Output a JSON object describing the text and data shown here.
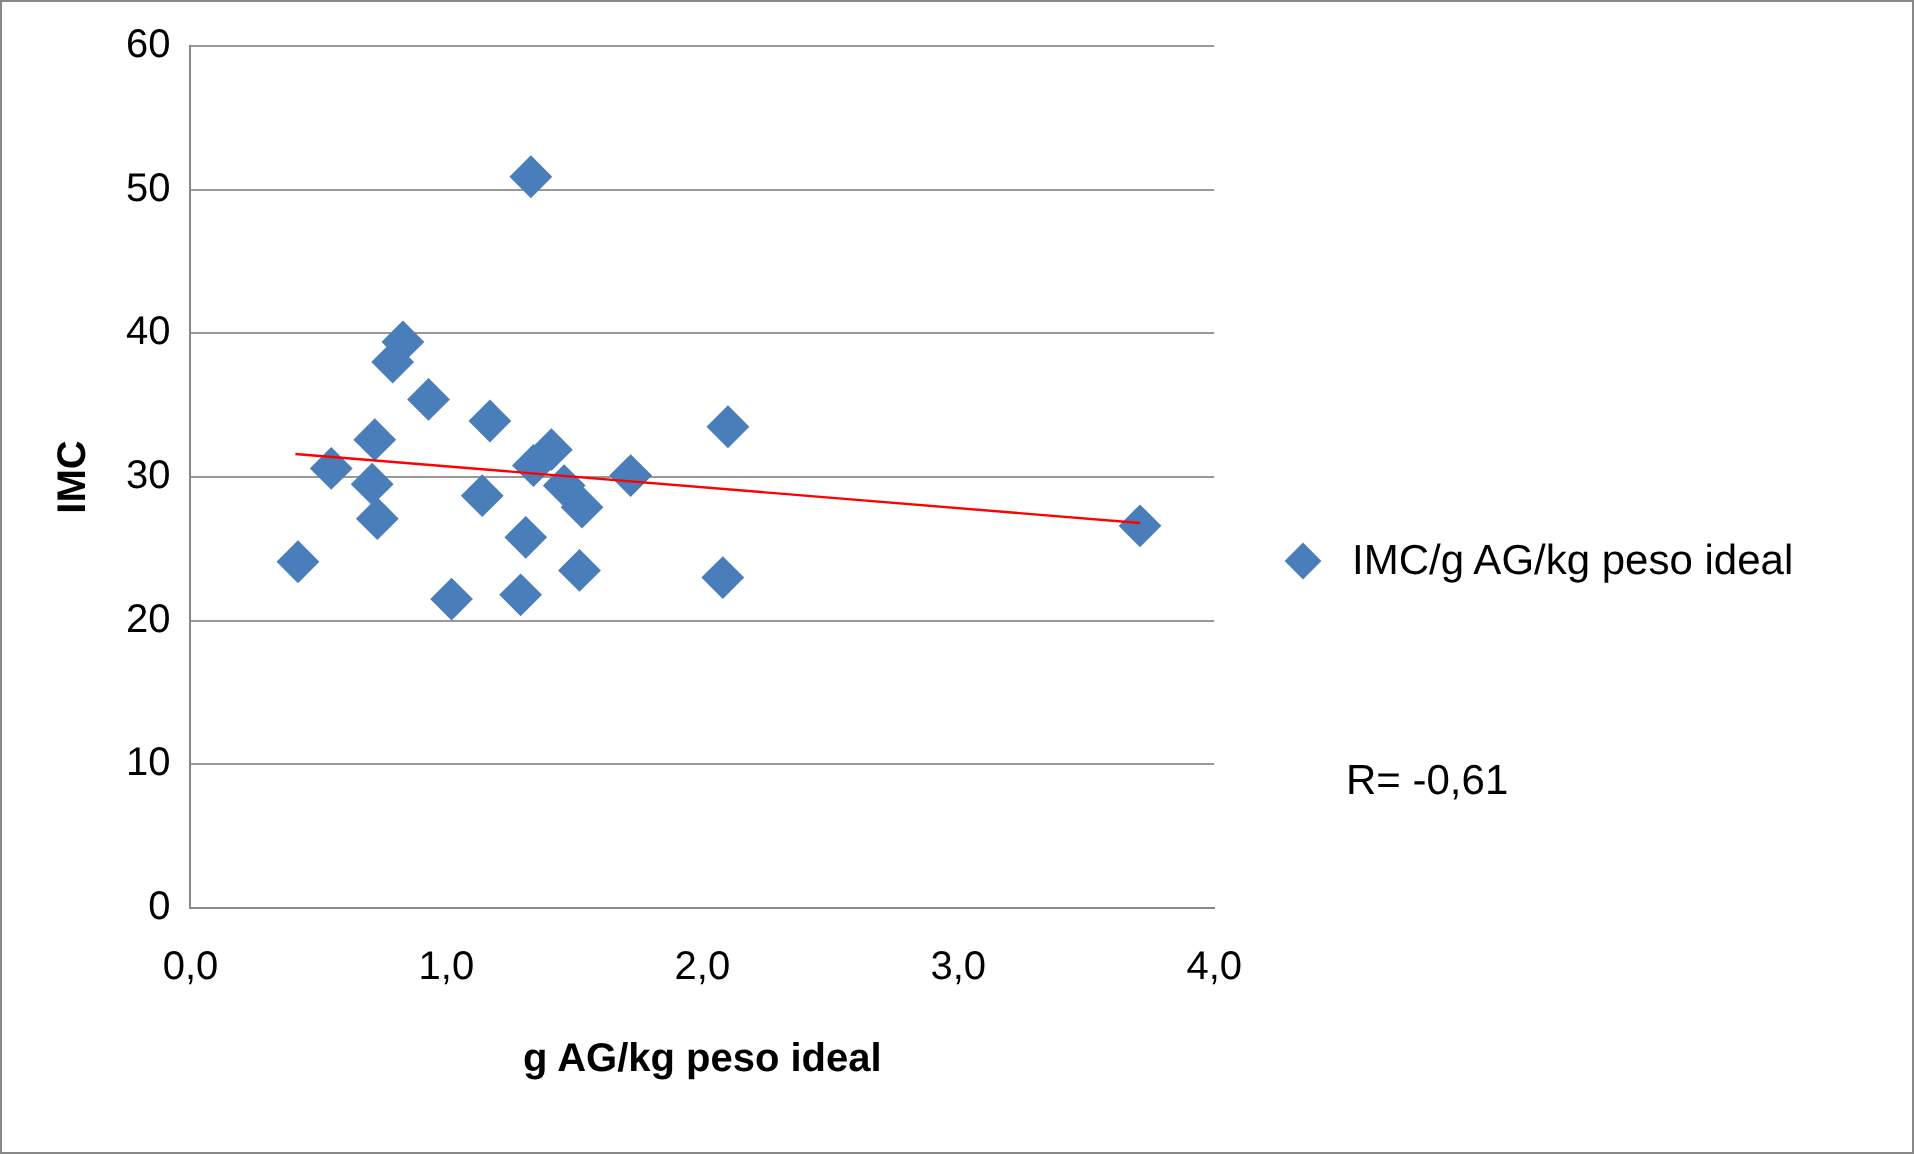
{
  "chart_data": {
    "type": "scatter",
    "xlabel": "g AG/kg peso ideal",
    "ylabel": "IMC",
    "xlim": [
      0,
      4
    ],
    "xticks": [
      {
        "value": 0,
        "label": "0,0"
      },
      {
        "value": 1,
        "label": "1,0"
      },
      {
        "value": 2,
        "label": "2,0"
      },
      {
        "value": 3,
        "label": "3,0"
      },
      {
        "value": 4,
        "label": "4,0"
      }
    ],
    "ylim": [
      0,
      60
    ],
    "yticks": [
      0,
      10,
      20,
      30,
      40,
      50,
      60
    ],
    "grid": "y",
    "legend": "right",
    "marker": "diamond",
    "series": [
      {
        "name": "IMC/g AG/kg peso ideal",
        "color": "#4a7ebb",
        "x": [
          1.33,
          0.83,
          0.79,
          0.93,
          1.17,
          2.1,
          0.72,
          1.41,
          1.34,
          0.55,
          1.72,
          0.71,
          1.46,
          1.53,
          1.14,
          0.73,
          3.71,
          1.31,
          0.42,
          1.52,
          2.08,
          1.29,
          1.02
        ],
        "values": [
          50.9,
          39.4,
          38.0,
          35.4,
          33.9,
          33.5,
          32.6,
          31.9,
          30.8,
          30.6,
          30.1,
          29.5,
          29.4,
          27.9,
          28.7,
          27.1,
          26.6,
          25.8,
          24.1,
          23.5,
          23.0,
          21.8,
          21.5
        ]
      },
      {
        "type": "line",
        "color": "#ff0000",
        "x": [
          0.41,
          3.71
        ],
        "values": [
          31.6,
          26.8
        ],
        "marker": "none"
      }
    ],
    "annotations": [
      "R= -0,61"
    ]
  }
}
